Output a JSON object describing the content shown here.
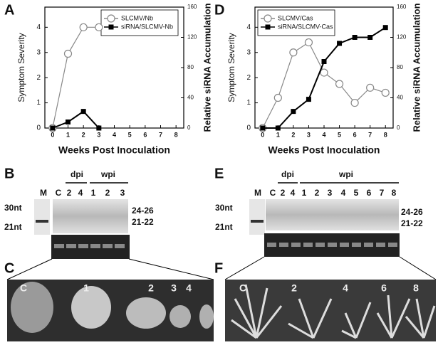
{
  "chart_data": [
    {
      "type": "line",
      "panel_label": "A",
      "x": [
        0,
        1,
        2,
        3,
        4,
        5,
        6,
        7,
        8
      ],
      "xlim": [
        -0.5,
        8.5
      ],
      "xticks": [
        0,
        1,
        2,
        3,
        4,
        5,
        6,
        7,
        8
      ],
      "ylim": [
        0,
        4.8
      ],
      "yticks": [
        0,
        1,
        2,
        3,
        4
      ],
      "y2lim": [
        0,
        160
      ],
      "y2ticks": [
        0,
        40,
        80,
        120,
        160
      ],
      "xlabel": "Weeks Post Inoculation",
      "ylabel": "Symptom Severity",
      "y2label": "Relative siRNA Accumulation",
      "legend": "upper right",
      "series": [
        {
          "name": "SLCMV/Nb",
          "color": "#888888",
          "marker": "circle",
          "values": [
            0,
            2.95,
            4.0,
            4.0,
            null,
            null,
            null,
            null,
            null
          ]
        },
        {
          "name": "siRNA/SLCMV-Nb",
          "color": "#000000",
          "marker": "square",
          "axis": "y2",
          "values": [
            0,
            8,
            22,
            0,
            null,
            null,
            null,
            null,
            null
          ]
        }
      ]
    },
    {
      "type": "line",
      "panel_label": "D",
      "x": [
        0,
        1,
        2,
        3,
        4,
        5,
        6,
        7,
        8
      ],
      "xlim": [
        -0.5,
        8.5
      ],
      "xticks": [
        0,
        1,
        2,
        3,
        4,
        5,
        6,
        7,
        8
      ],
      "ylim": [
        0,
        4.8
      ],
      "yticks": [
        0,
        1,
        2,
        3,
        4
      ],
      "y2lim": [
        0,
        160
      ],
      "y2ticks": [
        0,
        40,
        80,
        120,
        160
      ],
      "xlabel": "Weeks Post Inoculation",
      "ylabel": "Symptom Severity",
      "y2label": "Relative siRNA Accumulation",
      "legend": "upper left",
      "series": [
        {
          "name": "SLCMV/Cas",
          "color": "#888888",
          "marker": "circle",
          "values": [
            0,
            1.2,
            3.0,
            3.4,
            2.2,
            1.75,
            1.0,
            1.6,
            1.4
          ]
        },
        {
          "name": "siRNA/SLCMV-Cas",
          "color": "#000000",
          "marker": "square",
          "axis": "y2",
          "values": [
            0,
            0,
            22,
            38,
            88,
            112,
            120,
            120,
            133
          ]
        }
      ]
    }
  ],
  "gels": [
    {
      "panel_label": "B",
      "dpi": "dpi",
      "wpi": "wpi",
      "lanes": [
        "M",
        "C",
        "2",
        "4",
        "1",
        "2",
        "3"
      ],
      "markers": [
        "30nt",
        "21nt"
      ],
      "sizes": [
        "24-26",
        "21-22"
      ]
    },
    {
      "panel_label": "E",
      "dpi": "dpi",
      "wpi": "wpi",
      "lanes": [
        "M",
        "C",
        "2",
        "4",
        "1",
        "2",
        "3",
        "4",
        "5",
        "6",
        "7",
        "8"
      ],
      "markers": [
        "30nt",
        "21nt"
      ],
      "sizes": [
        "24-26",
        "21-22"
      ]
    }
  ],
  "photos": [
    {
      "panel_label": "C",
      "labels": [
        "C",
        "1",
        "2",
        "3",
        "4"
      ]
    },
    {
      "panel_label": "F",
      "labels": [
        "C",
        "2",
        "4",
        "6",
        "8"
      ]
    }
  ]
}
